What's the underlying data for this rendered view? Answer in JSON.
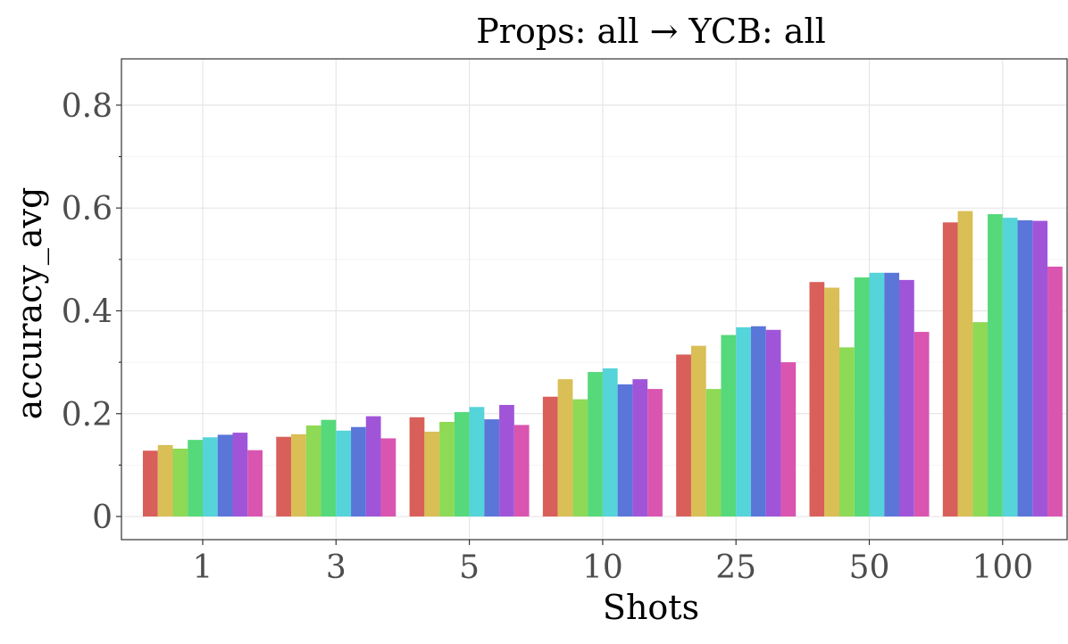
{
  "chart_data": {
    "type": "bar",
    "title": "Props: all → YCB: all",
    "xlabel": "Shots",
    "ylabel": "accuracy_avg",
    "categories": [
      "1",
      "3",
      "5",
      "10",
      "25",
      "50",
      "100"
    ],
    "ylim": [
      -0.045,
      0.89
    ],
    "yticks": [
      0,
      0.2,
      0.4,
      0.6,
      0.8
    ],
    "ytick_labels": [
      "0",
      "0.2",
      "0.4",
      "0.6",
      "0.8"
    ],
    "grid": true,
    "legend": "none",
    "series": [
      {
        "color": "#d95f5a",
        "values": [
          0.128,
          0.155,
          0.193,
          0.233,
          0.315,
          0.456,
          0.572
        ]
      },
      {
        "color": "#d9bf55",
        "values": [
          0.139,
          0.16,
          0.165,
          0.267,
          0.332,
          0.445,
          0.594
        ]
      },
      {
        "color": "#8ed955",
        "values": [
          0.132,
          0.177,
          0.184,
          0.228,
          0.248,
          0.329,
          0.378
        ]
      },
      {
        "color": "#55d97a",
        "values": [
          0.149,
          0.188,
          0.203,
          0.281,
          0.353,
          0.465,
          0.588
        ]
      },
      {
        "color": "#55d4d9",
        "values": [
          0.154,
          0.167,
          0.213,
          0.288,
          0.368,
          0.474,
          0.581
        ]
      },
      {
        "color": "#5a76d9",
        "values": [
          0.159,
          0.174,
          0.189,
          0.257,
          0.37,
          0.474,
          0.576
        ]
      },
      {
        "color": "#a055d9",
        "values": [
          0.163,
          0.195,
          0.217,
          0.267,
          0.363,
          0.46,
          0.575
        ]
      },
      {
        "color": "#d955b0",
        "values": [
          0.129,
          0.152,
          0.178,
          0.248,
          0.3,
          0.359,
          0.486
        ]
      }
    ]
  }
}
